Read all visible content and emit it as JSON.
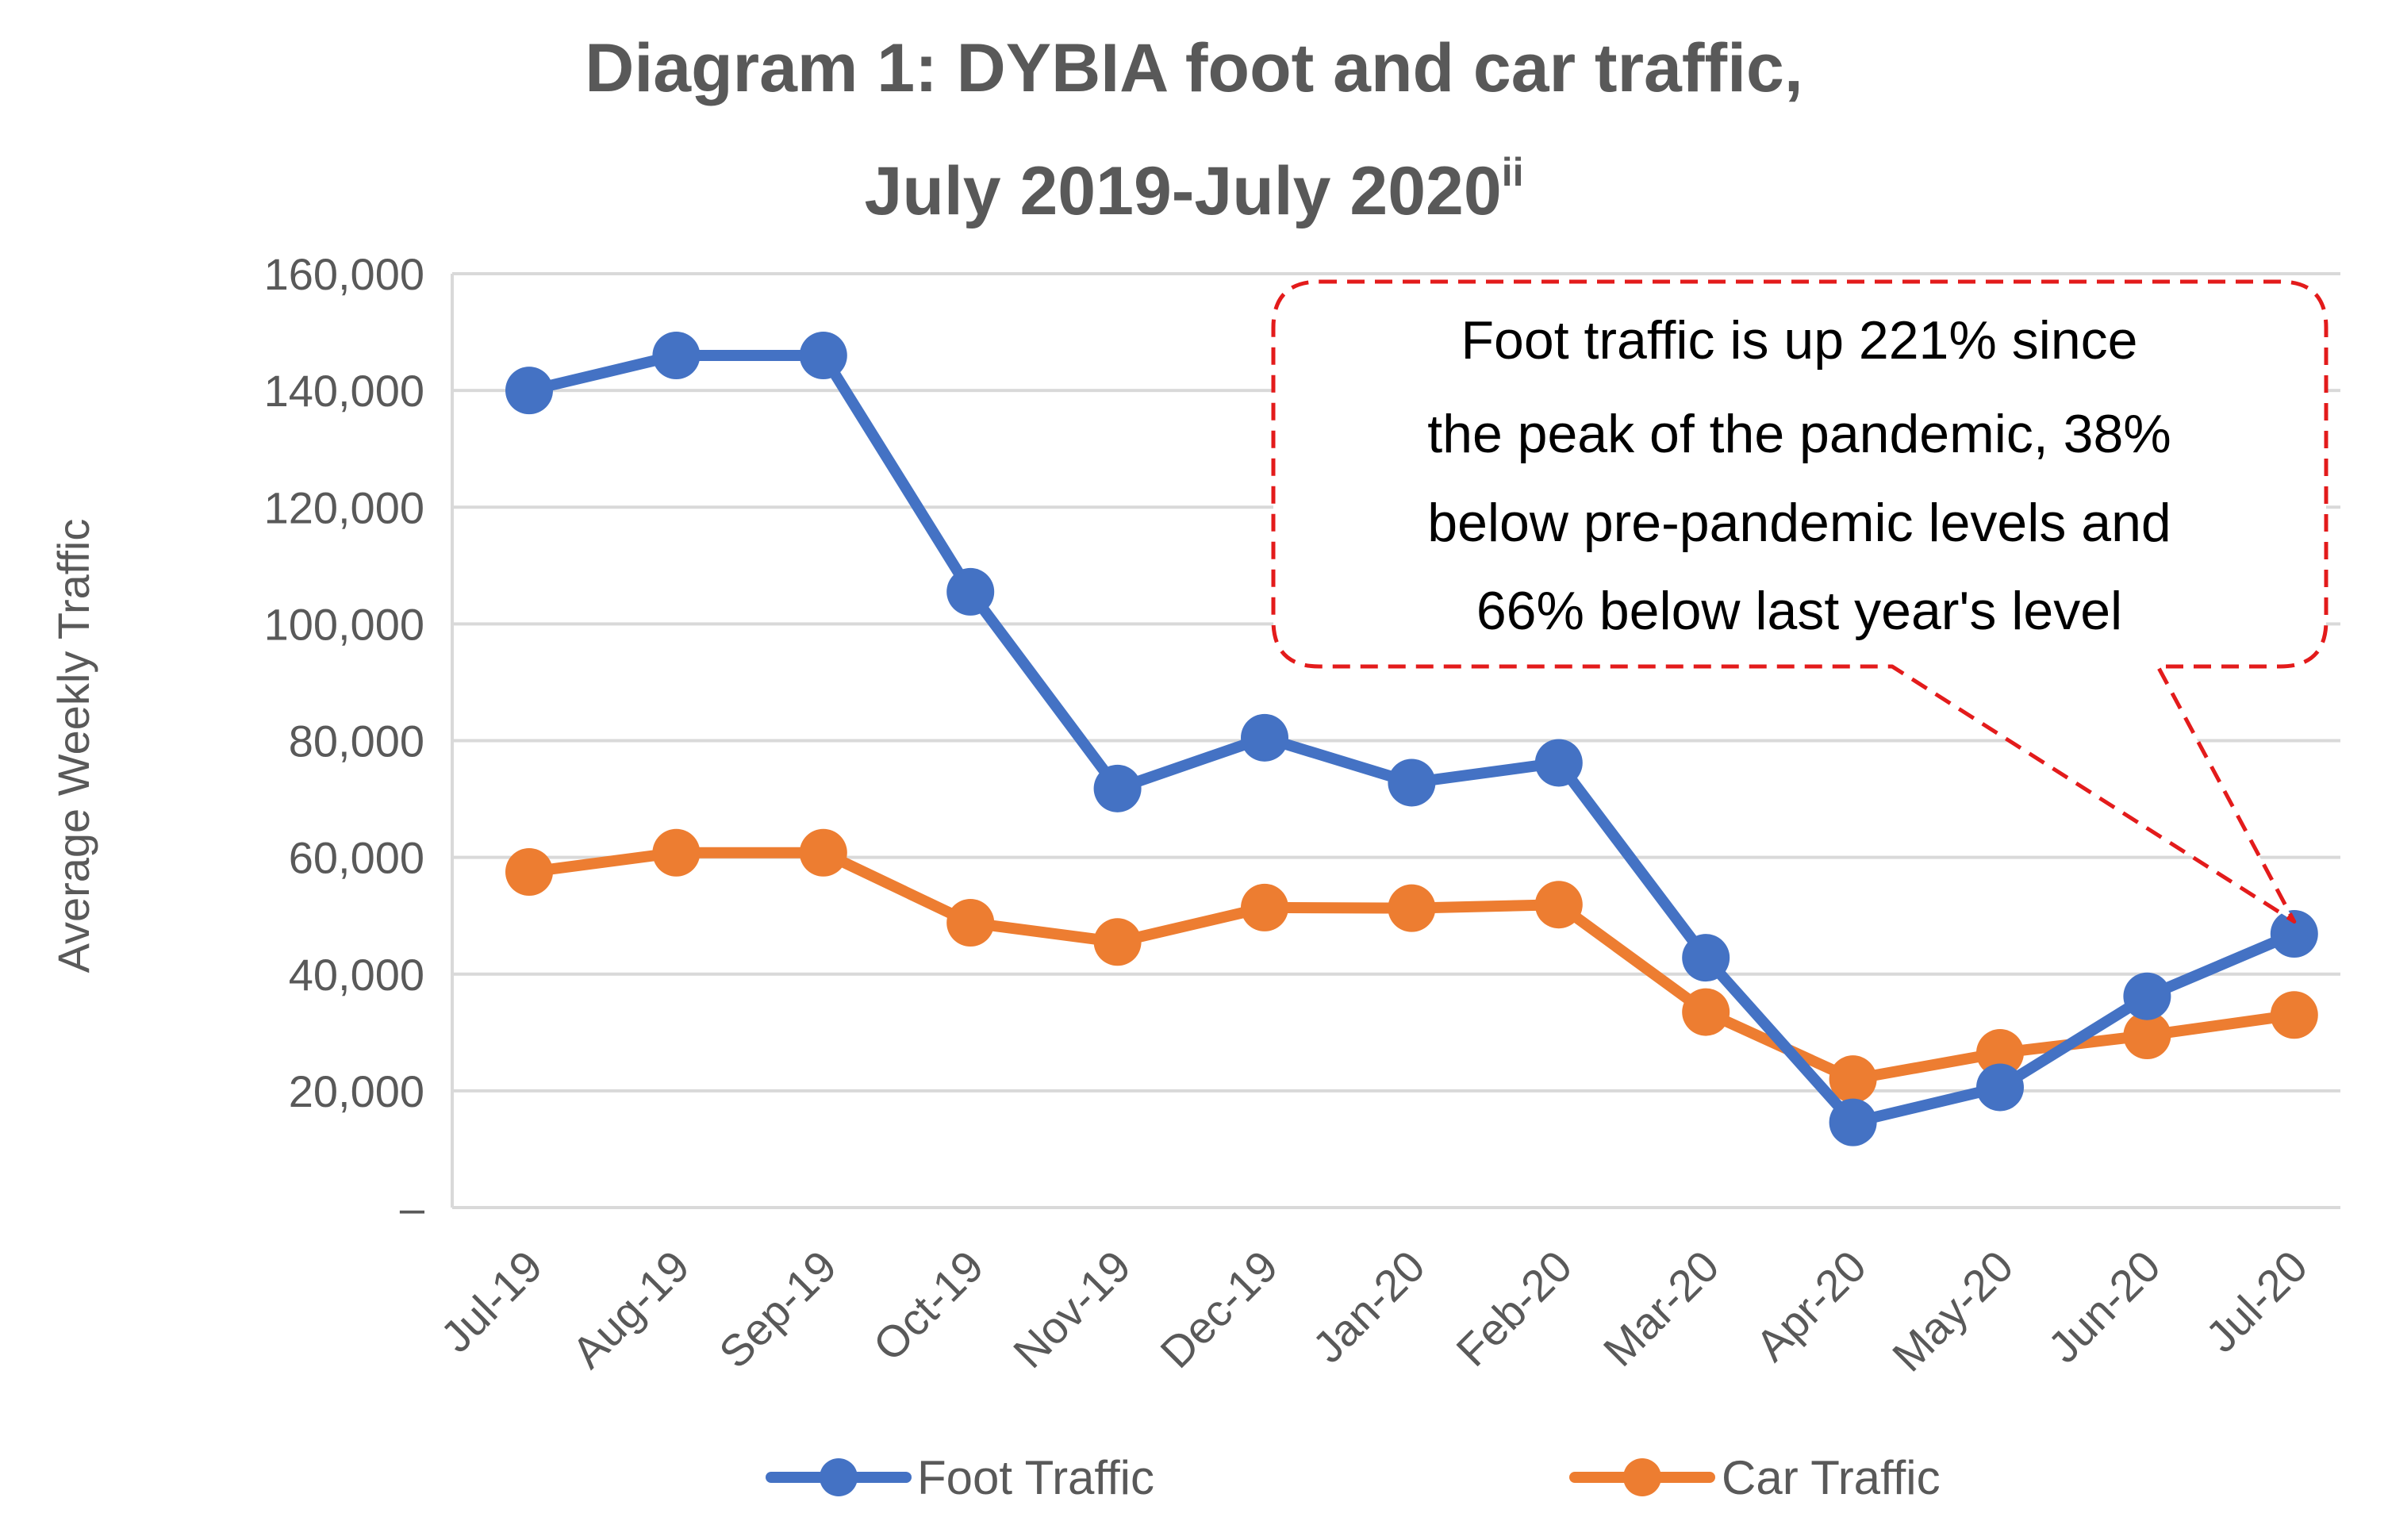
{
  "chart_data": {
    "type": "line",
    "title": [
      "Diagram 1: DYBIA foot and car traffic,",
      "July 2019-July 2020"
    ],
    "title_superscript": "ii",
    "xlabel": "",
    "ylabel": "Average Weekly Traffic",
    "ylim": [
      0,
      160000
    ],
    "y_ticks": [
      0,
      20000,
      40000,
      60000,
      80000,
      100000,
      120000,
      140000,
      160000
    ],
    "y_tick_labels": [
      "–",
      "20,000",
      "40,000",
      "60,000",
      "80,000",
      "100,000",
      "120,000",
      "140,000",
      "160,000"
    ],
    "categories": [
      "Jul-19",
      "Aug-19",
      "Sep-19",
      "Oct-19",
      "Nov-19",
      "Dec-19",
      "Jan-20",
      "Feb-20",
      "Mar-20",
      "Apr-20",
      "May-20",
      "Jun-20",
      "Jul-20"
    ],
    "grid": true,
    "legend_position": "bottom",
    "series": [
      {
        "name": "Foot Traffic",
        "color": "#4472C4",
        "values": [
          140000,
          146000,
          146000,
          105500,
          71800,
          80500,
          72800,
          76200,
          42800,
          14600,
          20600,
          36200,
          46900
        ]
      },
      {
        "name": "Car Traffic",
        "color": "#ED7D31",
        "values": [
          57500,
          60800,
          60800,
          48800,
          45500,
          51400,
          51300,
          51900,
          33500,
          22000,
          26500,
          29500,
          33000
        ]
      }
    ],
    "annotation": {
      "lines": [
        "Foot traffic is up 221% since",
        "the peak of the pandemic, 38%",
        "below pre-pandemic levels and",
        "66% below last year's level"
      ],
      "border_color": "#E31B1B",
      "target_category": "Jul-20",
      "target_value": 49000
    }
  }
}
